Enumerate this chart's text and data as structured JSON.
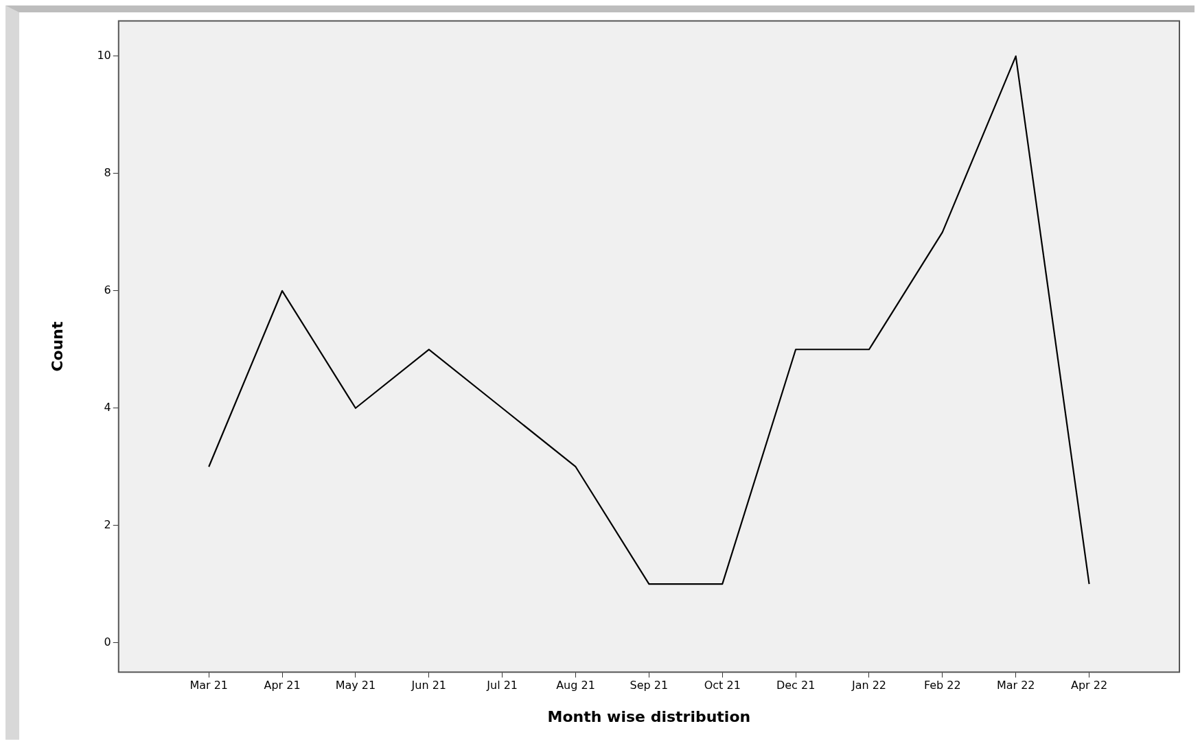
{
  "chart_data": {
    "type": "line",
    "xlabel": "Month wise distribution",
    "ylabel": "Count",
    "categories": [
      "Mar 21",
      "Apr 21",
      "May 21",
      "Jun 21",
      "Jul 21",
      "Aug 21",
      "Sep 21",
      "Oct 21",
      "Dec 21",
      "Jan 22",
      "Feb 22",
      "Mar 22",
      "Apr 22"
    ],
    "series": [
      {
        "color": "#000000",
        "values": [
          3,
          6,
          4,
          5,
          4,
          3,
          1,
          1,
          5,
          5,
          7,
          10,
          1
        ]
      }
    ],
    "ylim": [
      -0.5,
      10.6
    ],
    "yticks": [
      0,
      2,
      4,
      6,
      8,
      10
    ],
    "grid": false,
    "legend": false,
    "marker": "none",
    "line_style": "solid"
  }
}
